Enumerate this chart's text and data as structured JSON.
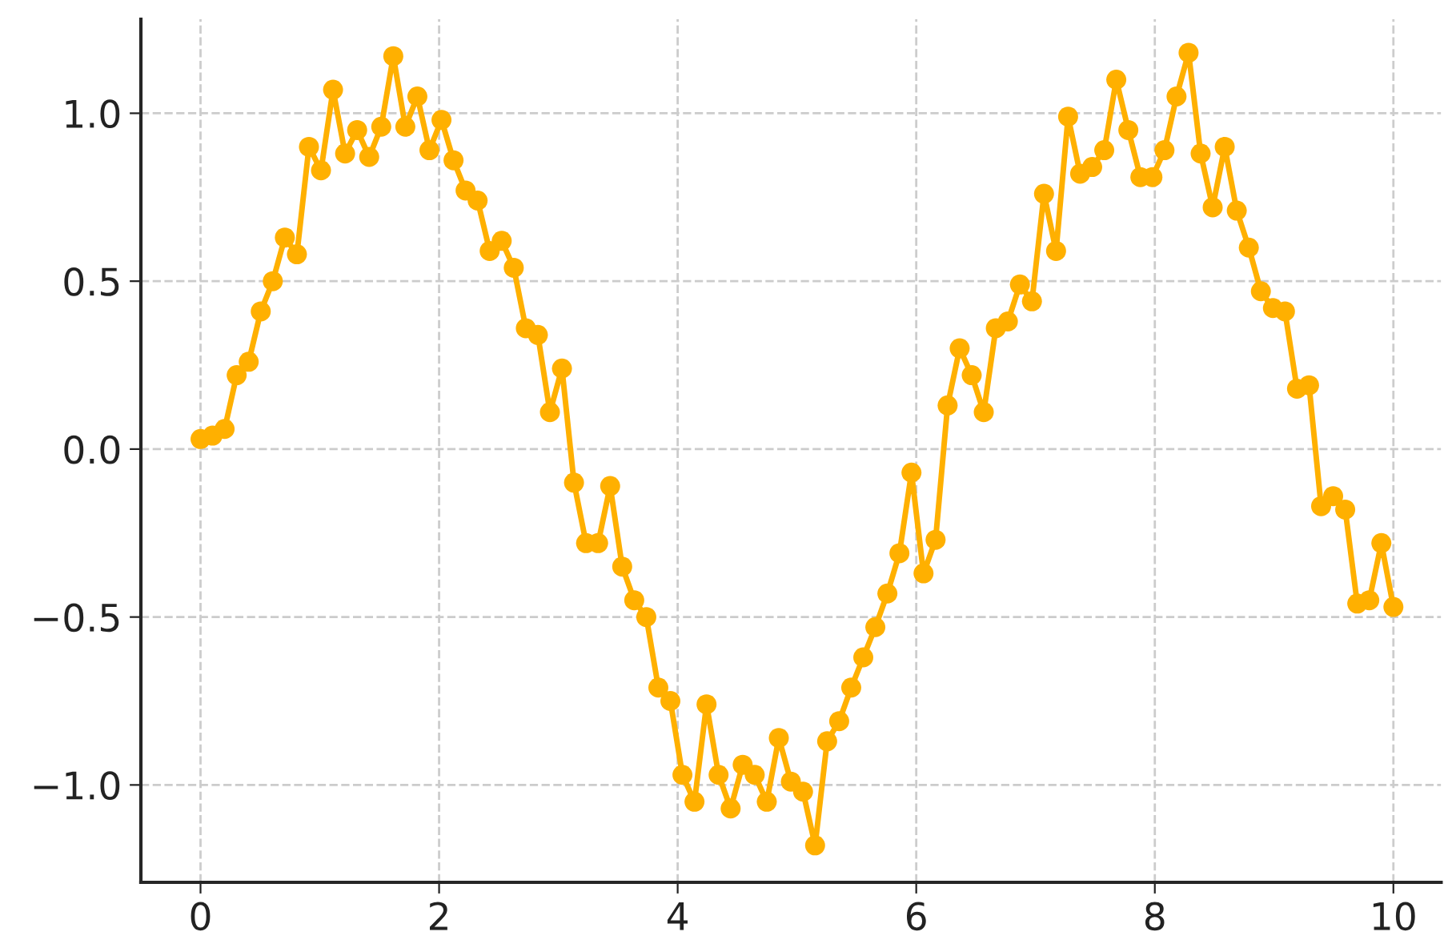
{
  "chart_data": {
    "type": "line",
    "x": [
      0,
      0.101,
      0.202,
      0.303,
      0.404,
      0.505,
      0.606,
      0.707,
      0.808,
      0.909,
      1.01,
      1.111,
      1.212,
      1.313,
      1.414,
      1.515,
      1.616,
      1.717,
      1.818,
      1.919,
      2.02,
      2.121,
      2.222,
      2.323,
      2.424,
      2.525,
      2.626,
      2.727,
      2.828,
      2.929,
      3.03,
      3.131,
      3.232,
      3.333,
      3.434,
      3.535,
      3.636,
      3.737,
      3.838,
      3.939,
      4.04,
      4.141,
      4.242,
      4.343,
      4.444,
      4.545,
      4.646,
      4.747,
      4.848,
      4.949,
      5.051,
      5.152,
      5.253,
      5.354,
      5.455,
      5.556,
      5.657,
      5.758,
      5.859,
      5.96,
      6.061,
      6.162,
      6.263,
      6.364,
      6.465,
      6.566,
      6.667,
      6.768,
      6.869,
      6.97,
      7.071,
      7.172,
      7.273,
      7.374,
      7.475,
      7.576,
      7.677,
      7.778,
      7.879,
      7.98,
      8.081,
      8.182,
      8.283,
      8.384,
      8.485,
      8.586,
      8.687,
      8.788,
      8.889,
      8.99,
      9.091,
      9.192,
      9.293,
      9.394,
      9.495,
      9.596,
      9.697,
      9.798,
      9.899,
      10
    ],
    "series": [
      {
        "color": "#ffb000",
        "values": [
          0.03,
          0.04,
          0.06,
          0.22,
          0.26,
          0.41,
          0.5,
          0.63,
          0.58,
          0.9,
          0.83,
          1.07,
          0.88,
          0.95,
          0.87,
          0.96,
          1.17,
          0.96,
          1.05,
          0.89,
          0.98,
          0.86,
          0.77,
          0.74,
          0.59,
          0.62,
          0.54,
          0.36,
          0.34,
          0.11,
          0.24,
          -0.1,
          -0.28,
          -0.28,
          -0.11,
          -0.35,
          -0.45,
          -0.5,
          -0.71,
          -0.75,
          -0.97,
          -1.05,
          -0.76,
          -0.97,
          -1.07,
          -0.94,
          -0.97,
          -1.05,
          -0.86,
          -0.99,
          -1.02,
          -1.18,
          -0.87,
          -0.81,
          -0.71,
          -0.62,
          -0.53,
          -0.43,
          -0.31,
          -0.07,
          -0.37,
          -0.27,
          0.13,
          0.3,
          0.22,
          0.11,
          0.36,
          0.38,
          0.49,
          0.44,
          0.76,
          0.59,
          0.99,
          0.82,
          0.84,
          0.89,
          1.1,
          0.95,
          0.81,
          0.81,
          0.89,
          1.05,
          1.18,
          0.88,
          0.72,
          0.9,
          0.71,
          0.6,
          0.47,
          0.42,
          0.41,
          0.18,
          0.19,
          -0.17,
          -0.14,
          -0.18,
          -0.46,
          -0.45,
          -0.28,
          -0.47
        ]
      }
    ],
    "xlim": [
      -0.5,
      10.4
    ],
    "ylim": [
      -1.29,
      1.28
    ],
    "xticks": [
      0,
      2,
      4,
      6,
      8,
      10
    ],
    "yticks": [
      {
        "value": -1.0,
        "label": "−1.0"
      },
      {
        "value": -0.5,
        "label": "−0.5"
      },
      {
        "value": 0.0,
        "label": "0.0"
      },
      {
        "value": 0.5,
        "label": "0.5"
      },
      {
        "value": 1.0,
        "label": "1.0"
      }
    ],
    "grid": true,
    "marker": "circle",
    "line_style": "solid"
  }
}
